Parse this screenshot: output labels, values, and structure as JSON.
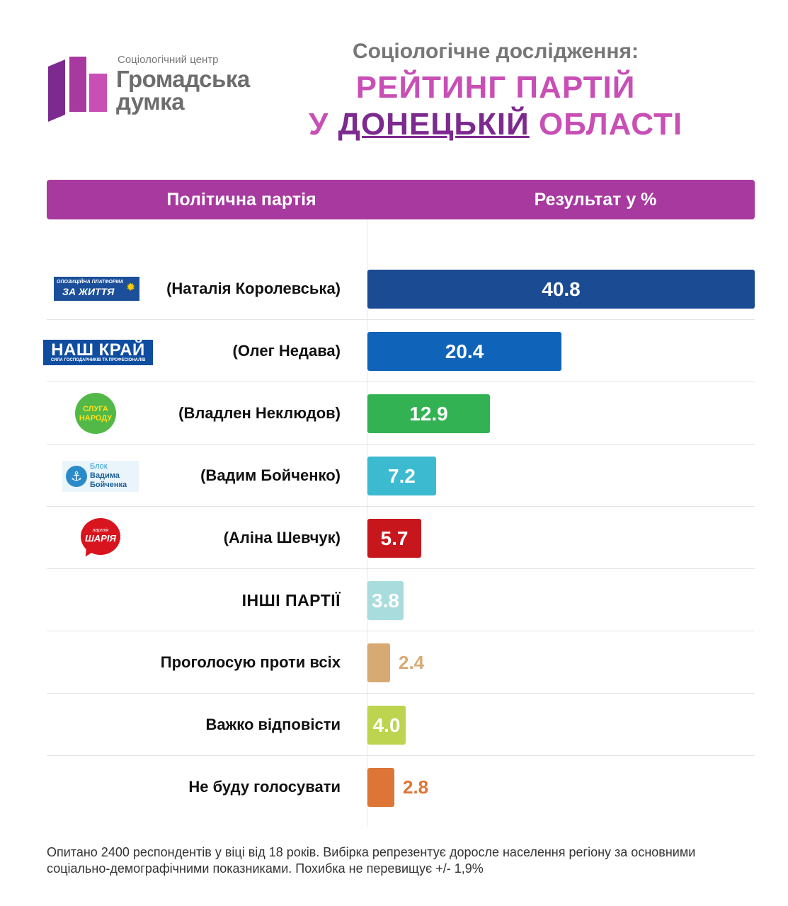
{
  "brand": {
    "subtitle": "Соціологічний центр",
    "name_line1": "Громадська",
    "name_line2": "думка",
    "colors": [
      "#7d2a90",
      "#a7399f",
      "#c84fb5"
    ]
  },
  "title": {
    "top": "Соціологічне дослідження:",
    "line1": "РЕЙТИНГ ПАРТІЙ",
    "line2_prefix": "У",
    "line2_highlight": "ДОНЕЦЬКІЙ",
    "line2_suffix": "ОБЛАСТІ"
  },
  "table_header": {
    "left": "Політична партія",
    "right": "Результат у %"
  },
  "logos": {
    "opzzh_line1": "ОПОЗИЦІЙНА ПЛАТФОРМА",
    "opzzh_line2": "ЗА ЖИТТЯ",
    "nashkrai_line1": "НАШ КРАЙ",
    "nashkrai_line2": "СИЛА ГОСПОДАРНИКІВ ТА ПРОФЕСІОНАЛІВ",
    "sluha_line1": "СЛУГА",
    "sluha_line2": "НАРОДУ",
    "blok_line1": "Блок",
    "blok_line2": "Вадима",
    "blok_line3": "Бойченка",
    "sharii_line1": "партія",
    "sharii_line2": "ШАРІЯ"
  },
  "chart_data": {
    "type": "bar",
    "orientation": "horizontal",
    "categories": [
      "(Наталія Королевська)",
      "(Олег Недава)",
      "(Владлен Неклюдов)",
      "(Вадим Бойченко)",
      "(Аліна Шевчук)",
      "ІНШІ ПАРТІЇ",
      "Проголосую проти всіх",
      "Важко відповісти",
      "Не буду голосувати"
    ],
    "values": [
      40.8,
      20.4,
      12.9,
      7.2,
      5.7,
      3.8,
      2.4,
      4.0,
      2.8
    ],
    "value_labels": [
      "40.8",
      "20.4",
      "12.9",
      "7.2",
      "5.7",
      "3.8",
      "2.4",
      "4.0",
      "2.8"
    ],
    "colors": [
      "#1b4b92",
      "#0f63b8",
      "#33b254",
      "#3cbad0",
      "#c8161d",
      "#a9dcdd",
      "#d8aa73",
      "#bcd44e",
      "#dd7536"
    ],
    "label_colors": [
      "#ffffff",
      "#ffffff",
      "#ffffff",
      "#ffffff",
      "#ffffff",
      "#ffffff",
      "#d8aa73",
      "#ffffff",
      "#dd7536"
    ],
    "label_outside": [
      false,
      false,
      false,
      false,
      false,
      false,
      true,
      false,
      true
    ],
    "xlim": [
      0,
      40.8
    ],
    "title": "РЕЙТИНГ ПАРТІЙ У ДОНЕЦЬКІЙ ОБЛАСТІ"
  },
  "footer": {
    "text": "Опитано 2400 респондентів у віці від 18 років. Вибірка репрезентує доросле населення регіону за основними соціально-демографічними показниками. Похибка не перевищує +/- 1,9%"
  }
}
